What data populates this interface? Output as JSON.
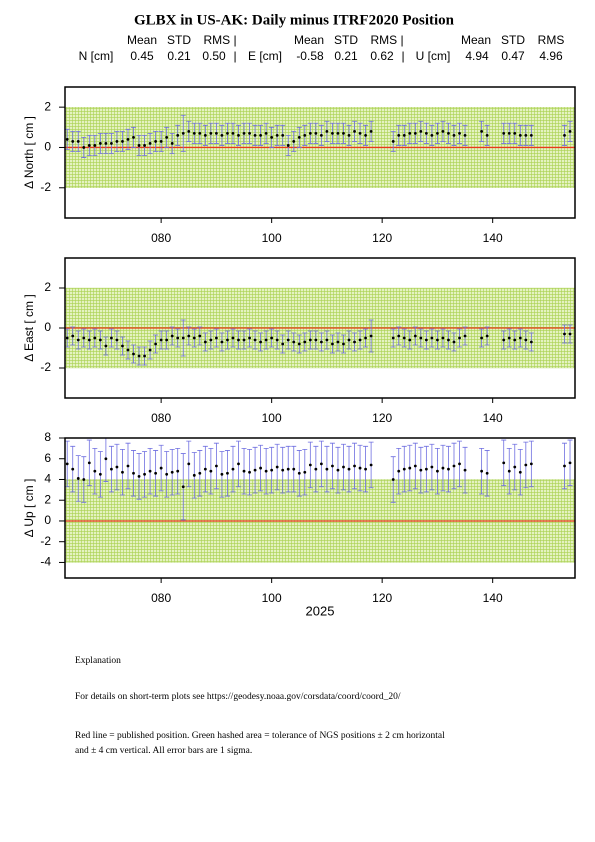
{
  "title": "GLBX in US-AK: Daily minus ITRF2020 Position",
  "stats_header": [
    "Mean",
    "STD",
    "RMS |",
    "Mean",
    "STD",
    "RMS |",
    "Mean",
    "STD",
    "RMS"
  ],
  "stats_row": [
    "N [cm]",
    "0.45",
    "0.21",
    "0.50",
    "|",
    "E [cm]",
    "-0.58",
    "0.21",
    "0.62",
    "|",
    "U [cm]",
    "4.94",
    "0.47",
    "4.96"
  ],
  "chart_data": [
    {
      "type": "errorbar",
      "ylabel": "Δ North  [ cm ]",
      "x": [
        63,
        64,
        65,
        66,
        67,
        68,
        69,
        70,
        71,
        72,
        73,
        74,
        75,
        76,
        77,
        78,
        79,
        80,
        81,
        82,
        83,
        84,
        85,
        86,
        87,
        88,
        89,
        90,
        91,
        92,
        93,
        94,
        95,
        96,
        97,
        98,
        99,
        100,
        101,
        102,
        103,
        104,
        105,
        106,
        107,
        108,
        109,
        110,
        111,
        112,
        113,
        114,
        115,
        116,
        117,
        118,
        122,
        123,
        124,
        125,
        126,
        127,
        128,
        129,
        130,
        131,
        132,
        133,
        134,
        135,
        138,
        139,
        142,
        143,
        144,
        145,
        146,
        147,
        153,
        154
      ],
      "values": [
        0.4,
        0.3,
        0.3,
        0.0,
        0.1,
        0.1,
        0.2,
        0.2,
        0.2,
        0.3,
        0.3,
        0.4,
        0.5,
        0.1,
        0.1,
        0.2,
        0.3,
        0.3,
        0.5,
        0.2,
        0.6,
        0.7,
        0.8,
        0.7,
        0.7,
        0.6,
        0.7,
        0.7,
        0.6,
        0.7,
        0.7,
        0.6,
        0.7,
        0.7,
        0.6,
        0.6,
        0.7,
        0.5,
        0.6,
        0.6,
        0.1,
        0.3,
        0.5,
        0.6,
        0.7,
        0.7,
        0.6,
        0.8,
        0.7,
        0.7,
        0.7,
        0.6,
        0.8,
        0.7,
        0.6,
        0.8,
        0.3,
        0.6,
        0.6,
        0.7,
        0.7,
        0.8,
        0.7,
        0.6,
        0.7,
        0.8,
        0.7,
        0.6,
        0.7,
        0.6,
        0.8,
        0.6,
        0.7,
        0.7,
        0.7,
        0.6,
        0.6,
        0.6,
        0.6,
        0.8
      ],
      "errors": [
        0.5,
        0.5,
        0.5,
        0.5,
        0.5,
        0.5,
        0.5,
        0.5,
        0.5,
        0.5,
        0.5,
        0.5,
        0.5,
        0.5,
        0.5,
        0.5,
        0.5,
        0.5,
        0.5,
        0.5,
        0.5,
        0.9,
        0.5,
        0.5,
        0.5,
        0.5,
        0.5,
        0.5,
        0.5,
        0.5,
        0.5,
        0.5,
        0.5,
        0.5,
        0.5,
        0.5,
        0.5,
        0.5,
        0.5,
        0.5,
        0.5,
        0.5,
        0.5,
        0.5,
        0.5,
        0.5,
        0.5,
        0.5,
        0.5,
        0.5,
        0.5,
        0.5,
        0.5,
        0.5,
        0.5,
        0.5,
        0.5,
        0.5,
        0.5,
        0.5,
        0.5,
        0.5,
        0.5,
        0.5,
        0.5,
        0.5,
        0.5,
        0.5,
        0.5,
        0.5,
        0.5,
        0.5,
        0.5,
        0.5,
        0.5,
        0.5,
        0.5,
        0.5,
        0.5,
        0.5
      ],
      "xlim": [
        62.6,
        154.9
      ],
      "ylim": [
        -3.5,
        3
      ],
      "xticks": [
        {
          "value": 80,
          "label": "080"
        },
        100,
        120,
        140
      ],
      "yticks": [
        -2,
        0,
        2
      ],
      "tolerance": 2,
      "reference": 0,
      "point_color": "#000000",
      "error_color": "#6f6fe0",
      "reference_color": "#e8391a",
      "tolerance_color": "#a9d14f"
    },
    {
      "type": "errorbar",
      "ylabel": "Δ East  [ cm ]",
      "x": [
        63,
        64,
        65,
        66,
        67,
        68,
        69,
        70,
        71,
        72,
        73,
        74,
        75,
        76,
        77,
        78,
        79,
        80,
        81,
        82,
        83,
        84,
        85,
        86,
        87,
        88,
        89,
        90,
        91,
        92,
        93,
        94,
        95,
        96,
        97,
        98,
        99,
        100,
        101,
        102,
        103,
        104,
        105,
        106,
        107,
        108,
        109,
        110,
        111,
        112,
        113,
        114,
        115,
        116,
        117,
        118,
        122,
        123,
        124,
        125,
        126,
        127,
        128,
        129,
        130,
        131,
        132,
        133,
        134,
        135,
        138,
        139,
        142,
        143,
        144,
        145,
        146,
        147,
        153,
        154
      ],
      "values": [
        -0.5,
        -0.4,
        -0.6,
        -0.5,
        -0.6,
        -0.5,
        -0.6,
        -0.9,
        -0.5,
        -0.6,
        -0.9,
        -1.1,
        -1.3,
        -1.4,
        -1.4,
        -1.1,
        -0.8,
        -0.6,
        -0.6,
        -0.4,
        -0.5,
        -0.5,
        -0.4,
        -0.5,
        -0.4,
        -0.7,
        -0.6,
        -0.5,
        -0.7,
        -0.6,
        -0.5,
        -0.6,
        -0.6,
        -0.5,
        -0.6,
        -0.7,
        -0.6,
        -0.5,
        -0.6,
        -0.8,
        -0.6,
        -0.7,
        -0.8,
        -0.7,
        -0.6,
        -0.6,
        -0.7,
        -0.6,
        -0.8,
        -0.7,
        -0.8,
        -0.6,
        -0.7,
        -0.6,
        -0.5,
        -0.4,
        -0.5,
        -0.4,
        -0.5,
        -0.6,
        -0.4,
        -0.5,
        -0.6,
        -0.5,
        -0.6,
        -0.5,
        -0.6,
        -0.7,
        -0.5,
        -0.4,
        -0.5,
        -0.4,
        -0.6,
        -0.5,
        -0.6,
        -0.5,
        -0.6,
        -0.7,
        -0.3,
        -0.3
      ],
      "errors": [
        0.45,
        0.45,
        0.45,
        0.45,
        0.45,
        0.45,
        0.45,
        0.45,
        0.45,
        0.45,
        0.45,
        0.45,
        0.45,
        0.45,
        0.45,
        0.45,
        0.45,
        0.45,
        0.45,
        0.45,
        0.45,
        0.9,
        0.45,
        0.45,
        0.45,
        0.45,
        0.45,
        0.45,
        0.45,
        0.45,
        0.45,
        0.45,
        0.45,
        0.45,
        0.45,
        0.45,
        0.45,
        0.45,
        0.45,
        0.45,
        0.45,
        0.45,
        0.45,
        0.45,
        0.45,
        0.45,
        0.45,
        0.45,
        0.45,
        0.45,
        0.45,
        0.45,
        0.45,
        0.45,
        0.45,
        0.8,
        0.45,
        0.45,
        0.45,
        0.45,
        0.45,
        0.45,
        0.45,
        0.45,
        0.45,
        0.45,
        0.45,
        0.45,
        0.45,
        0.45,
        0.45,
        0.45,
        0.45,
        0.45,
        0.45,
        0.45,
        0.45,
        0.45,
        0.45,
        0.45
      ],
      "xlim": [
        62.6,
        154.9
      ],
      "ylim": [
        -3.5,
        3.5
      ],
      "xticks": [
        {
          "value": 80,
          "label": "080"
        },
        100,
        120,
        140
      ],
      "yticks": [
        -2,
        0,
        2
      ],
      "tolerance": 2,
      "reference": 0,
      "point_color": "#000000",
      "error_color": "#6f6fe0",
      "reference_color": "#e8391a",
      "tolerance_color": "#a9d14f"
    },
    {
      "type": "errorbar",
      "ylabel": "Δ Up  [ cm ]",
      "xlabel": "2025",
      "x": [
        63,
        64,
        65,
        66,
        67,
        68,
        69,
        70,
        71,
        72,
        73,
        74,
        75,
        76,
        77,
        78,
        79,
        80,
        81,
        82,
        83,
        84,
        85,
        86,
        87,
        88,
        89,
        90,
        91,
        92,
        93,
        94,
        95,
        96,
        97,
        98,
        99,
        100,
        101,
        102,
        103,
        104,
        105,
        106,
        107,
        108,
        109,
        110,
        111,
        112,
        113,
        114,
        115,
        116,
        117,
        118,
        122,
        123,
        124,
        125,
        126,
        127,
        128,
        129,
        130,
        131,
        132,
        133,
        134,
        135,
        138,
        139,
        142,
        143,
        144,
        145,
        146,
        147,
        153,
        154
      ],
      "values": [
        5.5,
        5.0,
        4.1,
        4.0,
        5.6,
        4.8,
        4.5,
        6.0,
        5.0,
        5.2,
        4.7,
        5.3,
        4.6,
        4.3,
        4.5,
        4.8,
        4.6,
        5.1,
        4.5,
        4.7,
        4.8,
        3.3,
        5.5,
        4.4,
        4.6,
        5.0,
        4.8,
        5.3,
        4.5,
        4.6,
        5.0,
        5.5,
        4.8,
        4.7,
        4.9,
        5.1,
        4.8,
        4.9,
        5.2,
        4.9,
        5.0,
        5.0,
        4.6,
        4.7,
        5.4,
        5.0,
        5.5,
        5.0,
        5.3,
        4.9,
        5.2,
        5.0,
        5.3,
        5.1,
        5.0,
        5.4,
        4.0,
        4.8,
        5.0,
        5.1,
        5.3,
        4.9,
        5.0,
        5.2,
        4.8,
        5.1,
        5.0,
        5.3,
        5.5,
        4.9,
        4.8,
        4.6,
        5.6,
        4.8,
        5.2,
        4.7,
        5.4,
        5.5,
        5.3,
        5.6
      ],
      "errors": [
        2.2,
        2.2,
        2.2,
        2.2,
        2.2,
        2.2,
        2.2,
        2.2,
        2.2,
        2.2,
        2.2,
        2.2,
        2.2,
        2.2,
        2.2,
        2.2,
        2.2,
        2.2,
        2.2,
        2.2,
        2.2,
        3.2,
        2.2,
        2.2,
        2.2,
        2.2,
        2.2,
        2.2,
        2.2,
        2.2,
        2.2,
        2.2,
        2.2,
        2.2,
        2.2,
        2.2,
        2.2,
        2.2,
        2.2,
        2.2,
        2.2,
        2.2,
        2.2,
        2.2,
        2.2,
        2.2,
        2.2,
        2.2,
        2.2,
        2.2,
        2.2,
        2.2,
        2.2,
        2.2,
        2.2,
        2.2,
        2.2,
        2.2,
        2.2,
        2.2,
        2.2,
        2.2,
        2.2,
        2.2,
        2.2,
        2.2,
        2.2,
        2.2,
        2.2,
        2.2,
        2.2,
        2.2,
        2.2,
        2.2,
        2.2,
        2.2,
        2.2,
        2.2,
        2.2,
        2.2
      ],
      "xlim": [
        62.6,
        154.9
      ],
      "ylim": [
        -5.5,
        8
      ],
      "xticks": [
        {
          "value": 80,
          "label": "080"
        },
        100,
        120,
        140
      ],
      "yticks": [
        -4,
        -2,
        0,
        2,
        4,
        6,
        8
      ],
      "tolerance": 4,
      "reference": 0,
      "point_color": "#000000",
      "error_color": "#6f6fe0",
      "reference_color": "#e8391a",
      "tolerance_color": "#a9d14f"
    }
  ],
  "notes": [
    "Explanation",
    "For details on short-term plots see https://geodesy.noaa.gov/corsdata/coord/coord_20/",
    "Red line = published position.  Green hashed area = tolerance of NGS positions ± 2 cm horizontal",
    "and ± 4 cm vertical.  All error bars are 1 sigma."
  ]
}
